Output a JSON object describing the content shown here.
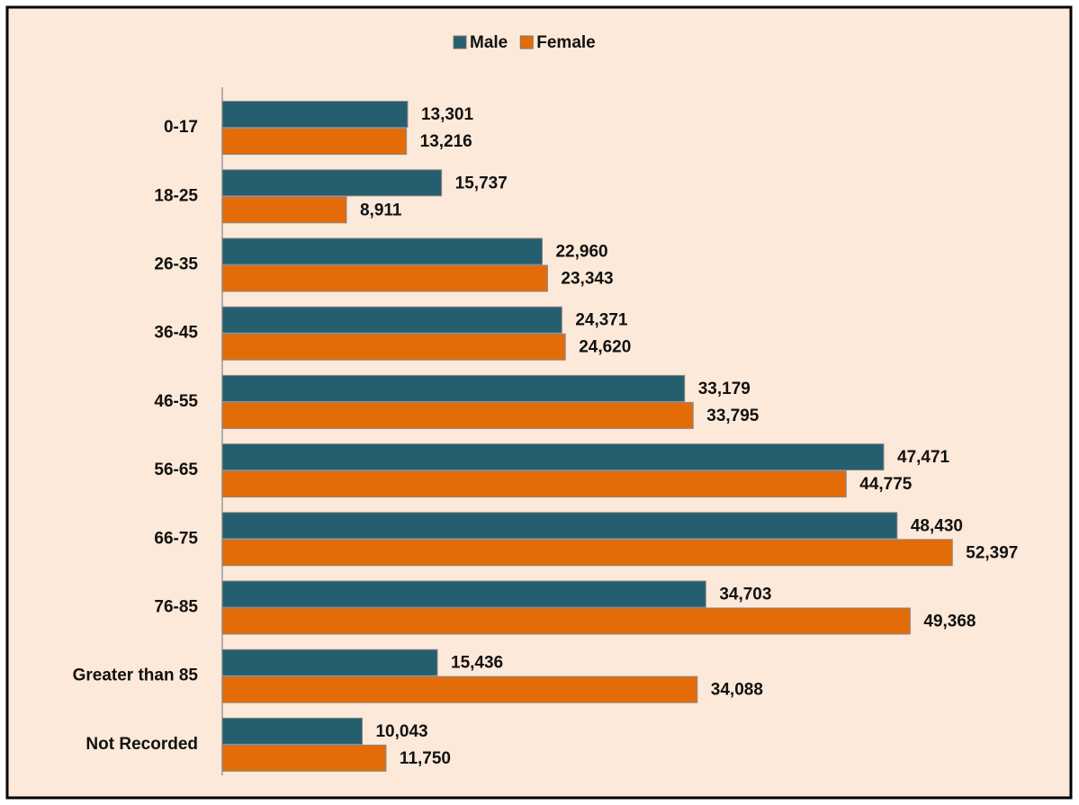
{
  "chart_data": {
    "type": "hbar",
    "categories": [
      "0-17",
      "18-25",
      "26-35",
      "36-45",
      "46-55",
      "56-65",
      "66-75",
      "76-85",
      "Greater than 85",
      "Not Recorded"
    ],
    "series": [
      {
        "name": "Male",
        "color": "#255e6e",
        "values": [
          13301,
          15737,
          22960,
          24371,
          33179,
          47471,
          48430,
          34703,
          15436,
          10043
        ],
        "value_labels": [
          "13,301",
          "15,737",
          "22,960",
          "24,371",
          "33,179",
          "47,471",
          "48,430",
          "34,703",
          "15,436",
          "10,043"
        ]
      },
      {
        "name": "Female",
        "color": "#e36c09",
        "values": [
          13216,
          8911,
          23343,
          24620,
          33795,
          44775,
          52397,
          49368,
          34088,
          11750
        ],
        "value_labels": [
          "13,216",
          "8,911",
          "23,343",
          "24,620",
          "33,795",
          "44,775",
          "52,397",
          "49,368",
          "34,088",
          "11,750"
        ]
      }
    ],
    "xlim": [
      0,
      60000
    ],
    "legend": "top"
  }
}
